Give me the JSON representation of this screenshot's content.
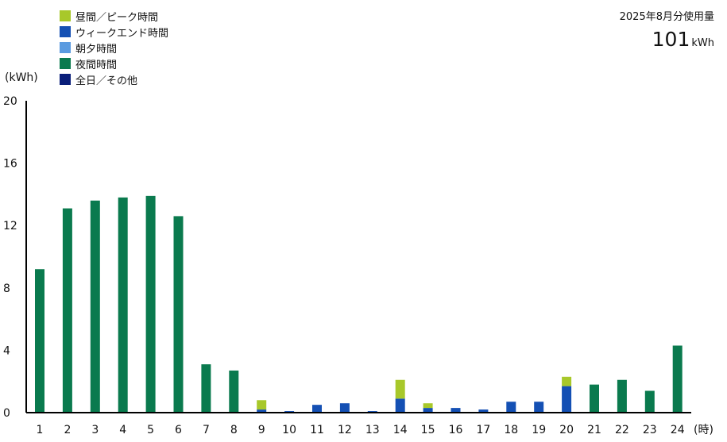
{
  "summary": {
    "label": "2025年8月分使用量",
    "value": "101",
    "unit": "kWh"
  },
  "chart_data": {
    "type": "bar",
    "stacked": true,
    "ylabel": "(kWh)",
    "xlabel": "(時)",
    "ylim": [
      0,
      20
    ],
    "yticks": [
      0,
      4,
      8,
      12,
      16,
      20
    ],
    "grid": false,
    "legend_position": "top-left",
    "categories": [
      "1",
      "2",
      "3",
      "4",
      "5",
      "6",
      "7",
      "8",
      "9",
      "10",
      "11",
      "12",
      "13",
      "14",
      "15",
      "16",
      "17",
      "18",
      "19",
      "20",
      "21",
      "22",
      "23",
      "24"
    ],
    "series": [
      {
        "name": "夜間時間",
        "color": "#0a7a4e",
        "values": [
          9.2,
          13.1,
          13.6,
          13.8,
          13.9,
          12.6,
          3.1,
          2.7,
          0,
          0,
          0,
          0,
          0,
          0,
          0,
          0,
          0,
          0,
          0,
          0,
          1.8,
          2.1,
          1.4,
          4.3
        ]
      },
      {
        "name": "ウィークエンド時間",
        "color": "#1450b4",
        "values": [
          0,
          0,
          0,
          0,
          0,
          0,
          0,
          0,
          0.2,
          0.1,
          0.5,
          0.6,
          0.1,
          0.9,
          0.3,
          0.3,
          0.2,
          0.7,
          0.7,
          1.7,
          0,
          0,
          0,
          0
        ]
      },
      {
        "name": "昼間／ピーク時間",
        "color": "#a8c82a",
        "values": [
          0,
          0,
          0,
          0,
          0,
          0,
          0,
          0,
          0.6,
          0,
          0,
          0,
          0,
          1.2,
          0.3,
          0,
          0,
          0,
          0,
          0.6,
          0,
          0,
          0,
          0
        ]
      },
      {
        "name": "朝夕時間",
        "color": "#5b9be0",
        "values": [
          0,
          0,
          0,
          0,
          0,
          0,
          0,
          0,
          0,
          0,
          0,
          0,
          0,
          0,
          0,
          0,
          0,
          0,
          0,
          0,
          0,
          0,
          0,
          0
        ]
      },
      {
        "name": "全日／その他",
        "color": "#0a1f7a",
        "values": [
          0,
          0,
          0,
          0,
          0,
          0,
          0,
          0,
          0,
          0,
          0,
          0,
          0,
          0,
          0,
          0,
          0,
          0,
          0,
          0,
          0,
          0,
          0,
          0
        ]
      }
    ],
    "legend": [
      {
        "name": "昼間／ピーク時間",
        "color": "#a8c82a"
      },
      {
        "name": "ウィークエンド時間",
        "color": "#1450b4"
      },
      {
        "name": "朝夕時間",
        "color": "#5b9be0"
      },
      {
        "name": "夜間時間",
        "color": "#0a7a4e"
      },
      {
        "name": "全日／その他",
        "color": "#0a1f7a"
      }
    ]
  }
}
